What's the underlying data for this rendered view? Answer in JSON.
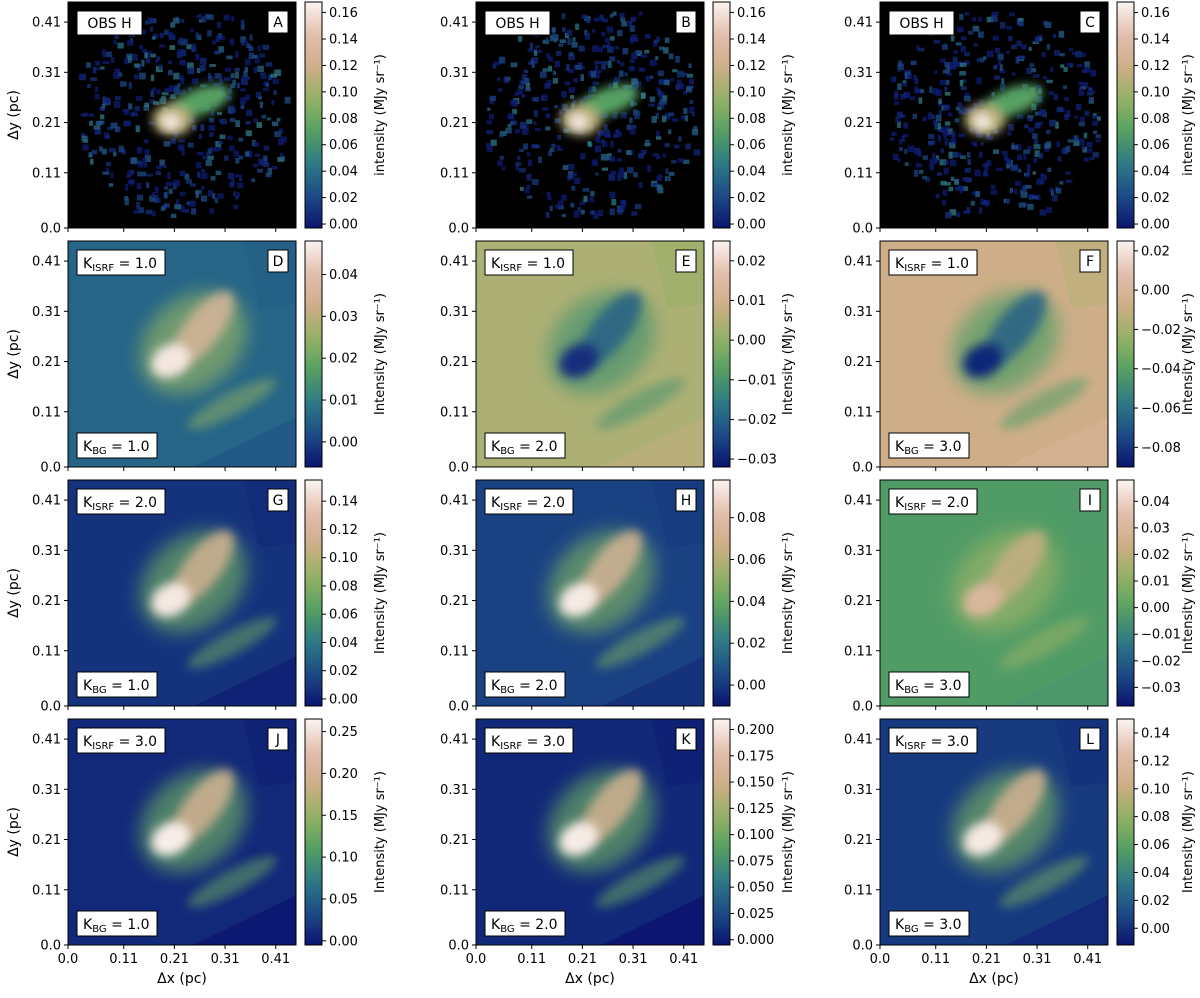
{
  "figure": {
    "x_axis_label": "Δx (pc)",
    "y_axis_label": "Δy (pc)",
    "x_ticks": [
      "0.0",
      "0.11",
      "0.21",
      "0.31",
      "0.41"
    ],
    "y_ticks": [
      "0.0",
      "0.11",
      "0.21",
      "0.31",
      "0.41"
    ],
    "colormap": [
      "#0b1470",
      "#1d4b86",
      "#2e7a87",
      "#56a062",
      "#94b165",
      "#cfae88",
      "#e2bfae",
      "#fbf4f1"
    ],
    "obs_background": "#000000"
  },
  "chart_data": [
    {
      "type": "heatmap",
      "panel": "A",
      "row_label": "OBS H",
      "kind": "obs",
      "cbar_label": "intensity (MJy sr⁻¹)",
      "vmin": -0.003,
      "vmax": 0.168,
      "cbar_ticks": [
        "0.00",
        "0.02",
        "0.04",
        "0.06",
        "0.08",
        "0.10",
        "0.12",
        "0.14",
        "0.16"
      ],
      "cbar_tick_values": [
        0,
        0.02,
        0.04,
        0.06,
        0.08,
        0.1,
        0.12,
        0.14,
        0.16
      ],
      "x_range": [
        0,
        0.45
      ],
      "y_range": [
        0,
        0.45
      ]
    },
    {
      "type": "heatmap",
      "panel": "B",
      "row_label": "OBS H",
      "kind": "obs",
      "cbar_label": "intensity (MJy sr⁻¹)",
      "vmin": -0.003,
      "vmax": 0.168,
      "cbar_ticks": [
        "0.00",
        "0.02",
        "0.04",
        "0.06",
        "0.08",
        "0.10",
        "0.12",
        "0.14",
        "0.16"
      ],
      "cbar_tick_values": [
        0,
        0.02,
        0.04,
        0.06,
        0.08,
        0.1,
        0.12,
        0.14,
        0.16
      ],
      "x_range": [
        0,
        0.45
      ],
      "y_range": [
        0,
        0.45
      ]
    },
    {
      "type": "heatmap",
      "panel": "C",
      "row_label": "OBS H",
      "kind": "obs",
      "cbar_label": "intensity (MJy sr⁻¹)",
      "vmin": -0.003,
      "vmax": 0.168,
      "cbar_ticks": [
        "0.00",
        "0.02",
        "0.04",
        "0.06",
        "0.08",
        "0.10",
        "0.12",
        "0.14",
        "0.16"
      ],
      "cbar_tick_values": [
        0,
        0.02,
        0.04,
        0.06,
        0.08,
        0.1,
        0.12,
        0.14,
        0.16
      ],
      "x_range": [
        0,
        0.45
      ],
      "y_range": [
        0,
        0.45
      ]
    },
    {
      "type": "heatmap",
      "panel": "D",
      "k_isrf": "1.0",
      "k_bg": "1.0",
      "kind": "model",
      "cbar_label": "Intensity (MJy sr⁻¹)",
      "vmin": -0.006,
      "vmax": 0.048,
      "background_value": 0.006,
      "peak_value": 0.046,
      "cbar_ticks": [
        "0.00",
        "0.01",
        "0.02",
        "0.03",
        "0.04"
      ],
      "cbar_tick_values": [
        0,
        0.01,
        0.02,
        0.03,
        0.04
      ],
      "x_range": [
        0,
        0.45
      ],
      "y_range": [
        0,
        0.45
      ]
    },
    {
      "type": "heatmap",
      "panel": "E",
      "k_isrf": "1.0",
      "k_bg": "2.0",
      "kind": "residual",
      "cbar_label": "Intensity (MJy sr⁻¹)",
      "vmin": -0.032,
      "vmax": 0.025,
      "background_value": 0.004,
      "peak_value": -0.028,
      "cbar_ticks": [
        "−0.03",
        "−0.02",
        "−0.01",
        "0.00",
        "0.01",
        "0.02"
      ],
      "cbar_tick_values": [
        -0.03,
        -0.02,
        -0.01,
        0,
        0.01,
        0.02
      ],
      "x_range": [
        0,
        0.45
      ],
      "y_range": [
        0,
        0.45
      ]
    },
    {
      "type": "heatmap",
      "panel": "F",
      "k_isrf": "1.0",
      "k_bg": "3.0",
      "kind": "residual",
      "cbar_label": "Intensity (MJy sr⁻¹)",
      "vmin": -0.09,
      "vmax": 0.025,
      "background_value": -0.008,
      "peak_value": -0.085,
      "cbar_ticks": [
        "−0.08",
        "−0.06",
        "−0.04",
        "−0.02",
        "0.00",
        "0.02"
      ],
      "cbar_tick_values": [
        -0.08,
        -0.06,
        -0.04,
        -0.02,
        0,
        0.02
      ],
      "x_range": [
        0,
        0.45
      ],
      "y_range": [
        0,
        0.45
      ]
    },
    {
      "type": "heatmap",
      "panel": "G",
      "k_isrf": "2.0",
      "k_bg": "1.0",
      "kind": "model",
      "cbar_label": "Intensity (MJy sr⁻¹)",
      "vmin": -0.005,
      "vmax": 0.155,
      "background_value": 0.008,
      "peak_value": 0.15,
      "cbar_ticks": [
        "0.00",
        "0.02",
        "0.04",
        "0.06",
        "0.08",
        "0.10",
        "0.12",
        "0.14"
      ],
      "cbar_tick_values": [
        0,
        0.02,
        0.04,
        0.06,
        0.08,
        0.1,
        0.12,
        0.14
      ],
      "x_range": [
        0,
        0.45
      ],
      "y_range": [
        0,
        0.45
      ]
    },
    {
      "type": "heatmap",
      "panel": "H",
      "k_isrf": "2.0",
      "k_bg": "2.0",
      "kind": "model",
      "cbar_label": "Intensity (MJy sr⁻¹)",
      "vmin": -0.01,
      "vmax": 0.098,
      "background_value": 0.003,
      "peak_value": 0.095,
      "cbar_ticks": [
        "0.00",
        "0.02",
        "0.04",
        "0.06",
        "0.08"
      ],
      "cbar_tick_values": [
        0,
        0.02,
        0.04,
        0.06,
        0.08
      ],
      "x_range": [
        0,
        0.45
      ],
      "y_range": [
        0,
        0.45
      ]
    },
    {
      "type": "heatmap",
      "panel": "I",
      "k_isrf": "2.0",
      "k_bg": "3.0",
      "kind": "model",
      "cbar_label": "Intensity (MJy sr⁻¹)",
      "vmin": -0.037,
      "vmax": 0.048,
      "background_value": -0.002,
      "peak_value": 0.03,
      "cbar_ticks": [
        "−0.03",
        "−0.02",
        "−0.01",
        "0.00",
        "0.01",
        "0.02",
        "0.03",
        "0.04"
      ],
      "cbar_tick_values": [
        -0.03,
        -0.02,
        -0.01,
        0,
        0.01,
        0.02,
        0.03,
        0.04
      ],
      "x_range": [
        0,
        0.45
      ],
      "y_range": [
        0,
        0.45
      ]
    },
    {
      "type": "heatmap",
      "panel": "J",
      "k_isrf": "3.0",
      "k_bg": "1.0",
      "kind": "model",
      "cbar_label": "Intensity (MJy sr⁻¹)",
      "vmin": -0.005,
      "vmax": 0.265,
      "background_value": 0.01,
      "peak_value": 0.26,
      "cbar_ticks": [
        "0.00",
        "0.05",
        "0.10",
        "0.15",
        "0.20",
        "0.25"
      ],
      "cbar_tick_values": [
        0,
        0.05,
        0.1,
        0.15,
        0.2,
        0.25
      ],
      "x_range": [
        0,
        0.45
      ],
      "y_range": [
        0,
        0.45
      ]
    },
    {
      "type": "heatmap",
      "panel": "K",
      "k_isrf": "3.0",
      "k_bg": "2.0",
      "kind": "model",
      "cbar_label": "Intensity (MJy sr⁻¹)",
      "vmin": -0.005,
      "vmax": 0.21,
      "background_value": 0.006,
      "peak_value": 0.205,
      "cbar_ticks": [
        "0.000",
        "0.025",
        "0.050",
        "0.075",
        "0.100",
        "0.125",
        "0.150",
        "0.175",
        "0.200"
      ],
      "cbar_tick_values": [
        0,
        0.025,
        0.05,
        0.075,
        0.1,
        0.125,
        0.15,
        0.175,
        0.2
      ],
      "x_range": [
        0,
        0.45
      ],
      "y_range": [
        0,
        0.45
      ]
    },
    {
      "type": "heatmap",
      "panel": "L",
      "k_isrf": "3.0",
      "k_bg": "3.0",
      "kind": "model",
      "cbar_label": "Intensity (MJy sr⁻¹)",
      "vmin": -0.012,
      "vmax": 0.15,
      "background_value": 0.004,
      "peak_value": 0.145,
      "cbar_ticks": [
        "0.00",
        "0.02",
        "0.04",
        "0.06",
        "0.08",
        "0.10",
        "0.12",
        "0.14"
      ],
      "cbar_tick_values": [
        0,
        0.02,
        0.04,
        0.06,
        0.08,
        0.1,
        0.12,
        0.14
      ],
      "x_range": [
        0,
        0.45
      ],
      "y_range": [
        0,
        0.45
      ]
    }
  ]
}
